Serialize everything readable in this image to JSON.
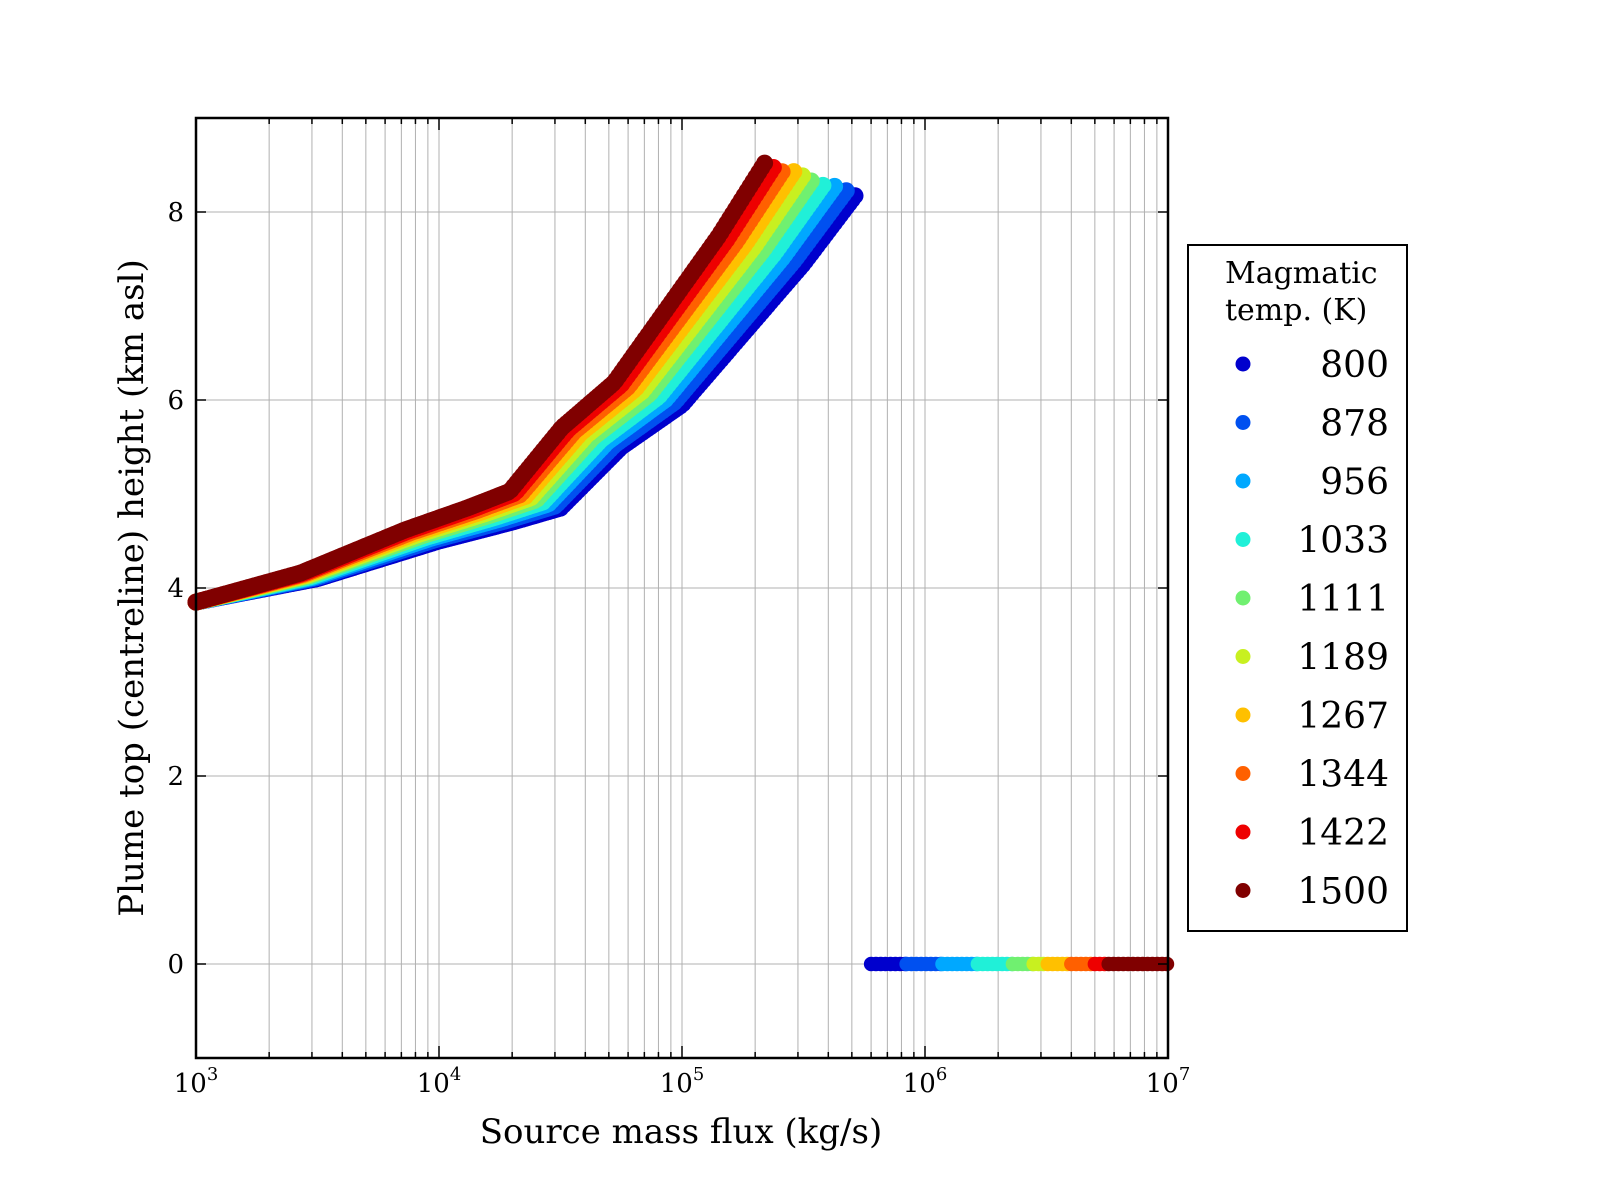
{
  "chart_data": {
    "type": "scatter",
    "title": "",
    "xlabel": "Source mass flux (kg/s)",
    "ylabel": "Plume top (centreline) height (km asl)",
    "xscale": "log",
    "xlim": [
      1000,
      10000000
    ],
    "ylim": [
      -1,
      9
    ],
    "x_ticks": [
      {
        "value": 1000,
        "base": "10",
        "exp": "3"
      },
      {
        "value": 10000,
        "base": "10",
        "exp": "4"
      },
      {
        "value": 100000,
        "base": "10",
        "exp": "5"
      },
      {
        "value": 1000000,
        "base": "10",
        "exp": "6"
      },
      {
        "value": 10000000,
        "base": "10",
        "exp": "7"
      }
    ],
    "y_ticks": [
      0,
      2,
      4,
      6,
      8
    ],
    "grid": true,
    "legend": {
      "title_lines": [
        "Magmatic",
        "temp. (K)"
      ],
      "placement": "right, outside plot"
    },
    "base_curve": {
      "log_mass_flux": [
        3.0,
        3.5,
        4.0,
        4.3,
        4.5,
        4.75,
        5.0,
        5.3,
        5.5,
        5.72
      ],
      "height_km": [
        3.85,
        4.1,
        4.5,
        4.7,
        4.85,
        5.5,
        5.95,
        6.85,
        7.45,
        8.2
      ]
    },
    "series": [
      {
        "name": "800",
        "color": "#0000cd",
        "top_shift_log": 0.0,
        "top_height_offset_km": 0.0,
        "collapse_x_start": 600000,
        "collapse_x_end": 840000
      },
      {
        "name": "878",
        "color": "#0050f0",
        "top_shift_log": -0.04,
        "top_height_offset_km": 0.04,
        "collapse_x_start": 840000,
        "collapse_x_end": 1180000
      },
      {
        "name": "956",
        "color": "#00a8ff",
        "top_shift_log": -0.09,
        "top_height_offset_km": 0.08,
        "collapse_x_start": 1180000,
        "collapse_x_end": 1650000
      },
      {
        "name": "1033",
        "color": "#20f0d8",
        "top_shift_log": -0.13,
        "top_height_offset_km": 0.12,
        "collapse_x_start": 1650000,
        "collapse_x_end": 2300000
      },
      {
        "name": "1111",
        "color": "#70f070",
        "top_shift_log": -0.18,
        "top_height_offset_km": 0.16,
        "collapse_x_start": 2300000,
        "collapse_x_end": 2800000
      },
      {
        "name": "1189",
        "color": "#c8f020",
        "top_shift_log": -0.22,
        "top_height_offset_km": 0.2,
        "collapse_x_start": 2800000,
        "collapse_x_end": 3200000
      },
      {
        "name": "1267",
        "color": "#ffc000",
        "top_shift_log": -0.26,
        "top_height_offset_km": 0.23,
        "collapse_x_start": 3200000,
        "collapse_x_end": 4000000
      },
      {
        "name": "1344",
        "color": "#ff6000",
        "top_shift_log": -0.3,
        "top_height_offset_km": 0.26,
        "collapse_x_start": 4000000,
        "collapse_x_end": 5000000
      },
      {
        "name": "1422",
        "color": "#ee0000",
        "top_shift_log": -0.34,
        "top_height_offset_km": 0.29,
        "collapse_x_start": 5000000,
        "collapse_x_end": 5700000
      },
      {
        "name": "1500",
        "color": "#800000",
        "top_shift_log": -0.38,
        "top_height_offset_km": 0.32,
        "collapse_x_start": 5700000,
        "collapse_x_end": 10000000
      }
    ]
  }
}
